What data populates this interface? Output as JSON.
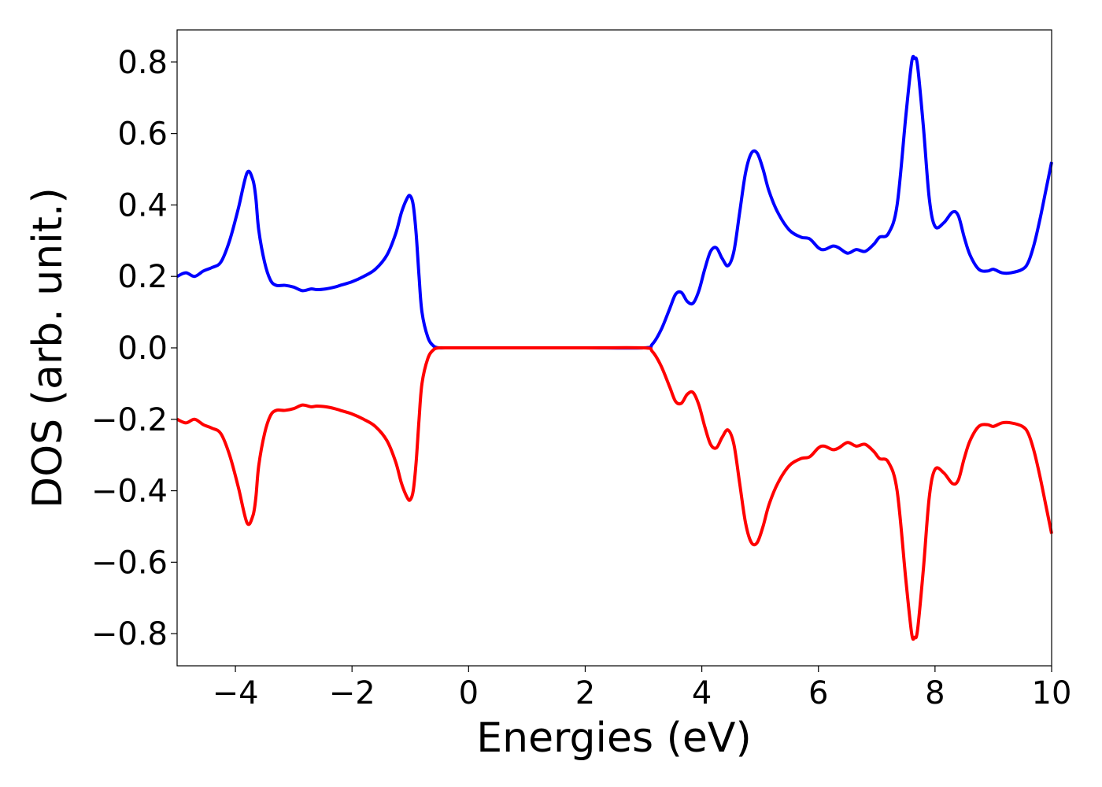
{
  "chart_data": {
    "type": "line",
    "title": "",
    "xlabel": "Energies (eV)",
    "ylabel": "DOS (arb. unit.)",
    "xlim": [
      -5,
      10
    ],
    "ylim": [
      -0.89,
      0.89
    ],
    "grid": false,
    "legend": "none",
    "x_ticks": [
      {
        "value": -4,
        "label": "−4"
      },
      {
        "value": -2,
        "label": "−2"
      },
      {
        "value": 0,
        "label": "0"
      },
      {
        "value": 2,
        "label": "2"
      },
      {
        "value": 4,
        "label": "4"
      },
      {
        "value": 6,
        "label": "6"
      },
      {
        "value": 8,
        "label": "8"
      },
      {
        "value": 10,
        "label": "10"
      }
    ],
    "y_ticks": [
      {
        "value": 0.8,
        "label": "0.8"
      },
      {
        "value": 0.6,
        "label": "0.6"
      },
      {
        "value": 0.4,
        "label": "0.4"
      },
      {
        "value": 0.2,
        "label": "0.2"
      },
      {
        "value": 0.0,
        "label": "0.0"
      },
      {
        "value": -0.2,
        "label": "−0.2"
      },
      {
        "value": -0.4,
        "label": "−0.4"
      },
      {
        "value": -0.6,
        "label": "−0.6"
      },
      {
        "value": -0.8,
        "label": "−0.8"
      }
    ],
    "series": [
      {
        "color": "#0000ff",
        "x": [
          -5.0,
          -4.85,
          -4.7,
          -4.55,
          -4.4,
          -4.25,
          -4.1,
          -3.95,
          -3.8,
          -3.7,
          -3.65,
          -3.6,
          -3.5,
          -3.4,
          -3.3,
          -3.15,
          -3.0,
          -2.85,
          -2.7,
          -2.6,
          -2.45,
          -2.3,
          -2.2,
          -2.0,
          -1.8,
          -1.6,
          -1.4,
          -1.25,
          -1.15,
          -1.05,
          -1.0,
          -0.95,
          -0.9,
          -0.85,
          -0.8,
          -0.7,
          -0.6,
          -0.5,
          -0.4,
          0.0,
          1.0,
          2.0,
          3.0,
          3.15,
          3.3,
          3.45,
          3.55,
          3.65,
          3.75,
          3.85,
          3.95,
          4.05,
          4.15,
          4.25,
          4.35,
          4.45,
          4.55,
          4.65,
          4.75,
          4.85,
          4.95,
          5.05,
          5.15,
          5.3,
          5.5,
          5.7,
          5.85,
          6.0,
          6.1,
          6.25,
          6.35,
          6.5,
          6.65,
          6.8,
          6.95,
          7.05,
          7.2,
          7.35,
          7.5,
          7.6,
          7.65,
          7.7,
          7.8,
          7.9,
          8.0,
          8.15,
          8.3,
          8.4,
          8.5,
          8.6,
          8.75,
          8.9,
          9.0,
          9.15,
          9.3,
          9.5,
          9.6,
          9.7,
          9.8,
          9.9,
          10.0
        ],
        "y": [
          0.2,
          0.21,
          0.2,
          0.215,
          0.225,
          0.24,
          0.3,
          0.39,
          0.49,
          0.47,
          0.42,
          0.33,
          0.24,
          0.19,
          0.175,
          0.175,
          0.17,
          0.16,
          0.165,
          0.163,
          0.165,
          0.17,
          0.175,
          0.185,
          0.2,
          0.22,
          0.26,
          0.32,
          0.38,
          0.42,
          0.425,
          0.4,
          0.32,
          0.2,
          0.1,
          0.03,
          0.005,
          0.0,
          0.0,
          0.0,
          0.0,
          0.0,
          0.0,
          0.01,
          0.05,
          0.11,
          0.15,
          0.155,
          0.13,
          0.125,
          0.16,
          0.22,
          0.27,
          0.28,
          0.25,
          0.23,
          0.27,
          0.38,
          0.49,
          0.545,
          0.545,
          0.5,
          0.44,
          0.38,
          0.33,
          0.31,
          0.305,
          0.28,
          0.275,
          0.285,
          0.28,
          0.265,
          0.275,
          0.27,
          0.29,
          0.31,
          0.32,
          0.4,
          0.65,
          0.8,
          0.81,
          0.79,
          0.62,
          0.42,
          0.34,
          0.35,
          0.38,
          0.37,
          0.31,
          0.26,
          0.22,
          0.215,
          0.22,
          0.21,
          0.21,
          0.22,
          0.24,
          0.29,
          0.36,
          0.44,
          0.52
        ]
      },
      {
        "color": "#ff0000",
        "x": [
          -5.0,
          -4.85,
          -4.7,
          -4.55,
          -4.4,
          -4.25,
          -4.1,
          -3.95,
          -3.8,
          -3.7,
          -3.65,
          -3.6,
          -3.5,
          -3.4,
          -3.3,
          -3.15,
          -3.0,
          -2.85,
          -2.7,
          -2.6,
          -2.45,
          -2.3,
          -2.2,
          -2.0,
          -1.8,
          -1.6,
          -1.4,
          -1.25,
          -1.15,
          -1.05,
          -1.0,
          -0.95,
          -0.9,
          -0.85,
          -0.8,
          -0.7,
          -0.6,
          -0.5,
          -0.4,
          0.0,
          1.0,
          2.0,
          3.0,
          3.15,
          3.3,
          3.45,
          3.55,
          3.65,
          3.75,
          3.85,
          3.95,
          4.05,
          4.15,
          4.25,
          4.35,
          4.45,
          4.55,
          4.65,
          4.75,
          4.85,
          4.95,
          5.05,
          5.15,
          5.3,
          5.5,
          5.7,
          5.85,
          6.0,
          6.1,
          6.25,
          6.35,
          6.5,
          6.65,
          6.8,
          6.95,
          7.05,
          7.2,
          7.35,
          7.5,
          7.6,
          7.65,
          7.7,
          7.8,
          7.9,
          8.0,
          8.15,
          8.3,
          8.4,
          8.5,
          8.6,
          8.75,
          8.9,
          9.0,
          9.15,
          9.3,
          9.5,
          9.6,
          9.7,
          9.8,
          9.9,
          10.0
        ],
        "y": [
          -0.2,
          -0.21,
          -0.2,
          -0.215,
          -0.225,
          -0.24,
          -0.3,
          -0.39,
          -0.49,
          -0.47,
          -0.42,
          -0.33,
          -0.24,
          -0.19,
          -0.175,
          -0.175,
          -0.17,
          -0.16,
          -0.165,
          -0.163,
          -0.165,
          -0.17,
          -0.175,
          -0.185,
          -0.2,
          -0.22,
          -0.26,
          -0.32,
          -0.38,
          -0.42,
          -0.425,
          -0.4,
          -0.32,
          -0.2,
          -0.1,
          -0.03,
          -0.005,
          0.0,
          0.0,
          0.0,
          0.0,
          0.0,
          0.0,
          -0.01,
          -0.05,
          -0.11,
          -0.15,
          -0.155,
          -0.13,
          -0.125,
          -0.16,
          -0.22,
          -0.27,
          -0.28,
          -0.25,
          -0.23,
          -0.27,
          -0.38,
          -0.49,
          -0.545,
          -0.545,
          -0.5,
          -0.44,
          -0.38,
          -0.33,
          -0.31,
          -0.305,
          -0.28,
          -0.275,
          -0.285,
          -0.28,
          -0.265,
          -0.275,
          -0.27,
          -0.29,
          -0.31,
          -0.32,
          -0.4,
          -0.65,
          -0.8,
          -0.81,
          -0.79,
          -0.62,
          -0.42,
          -0.34,
          -0.35,
          -0.38,
          -0.37,
          -0.31,
          -0.26,
          -0.22,
          -0.215,
          -0.22,
          -0.21,
          -0.21,
          -0.22,
          -0.24,
          -0.29,
          -0.36,
          -0.44,
          -0.52
        ]
      }
    ]
  }
}
